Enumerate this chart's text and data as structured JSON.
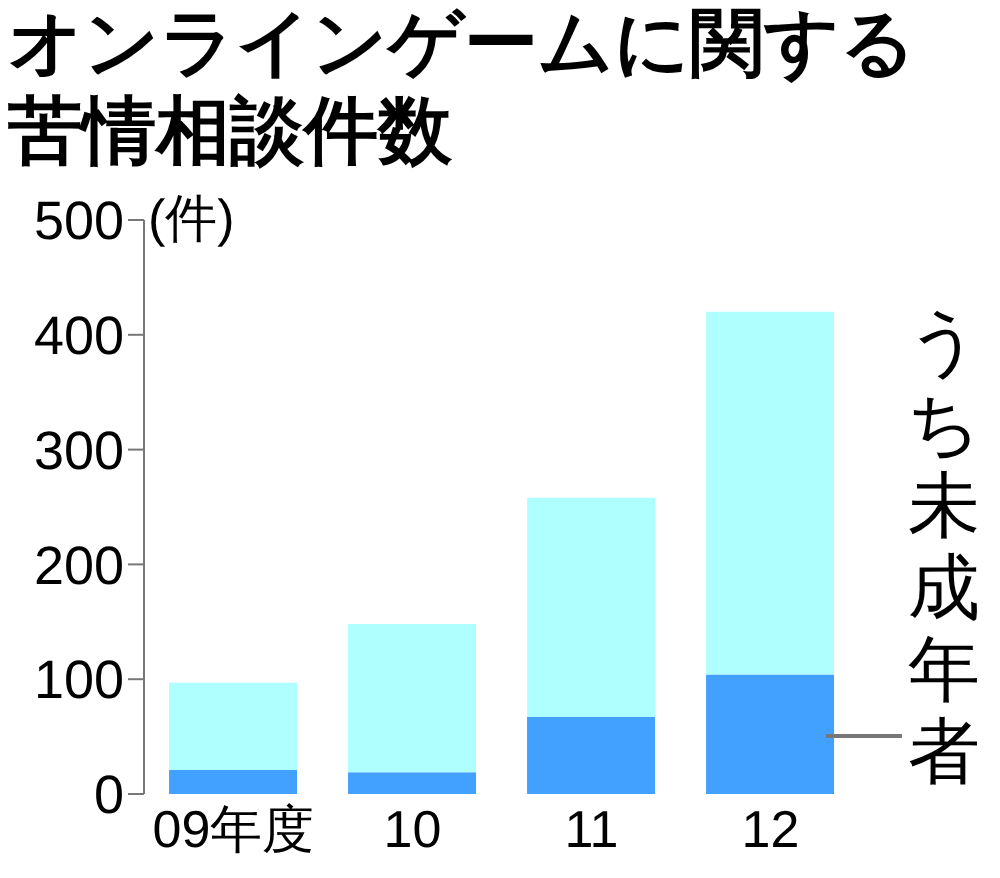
{
  "chart_data": {
    "type": "bar",
    "title": "オンラインゲームに関する苦情相談件数",
    "ylabel": "(件)",
    "categories": [
      "09年度",
      "10",
      "11",
      "12"
    ],
    "stacked": true,
    "ylim": [
      0,
      500
    ],
    "yticks": [
      0,
      100,
      200,
      300,
      400,
      500
    ],
    "series": [
      {
        "name": "うち未成年者",
        "color": "#42a0ff",
        "values": [
          21,
          19,
          67,
          104
        ]
      },
      {
        "color": "#b0ffff",
        "values": [
          76,
          129,
          191,
          316
        ]
      }
    ]
  }
}
